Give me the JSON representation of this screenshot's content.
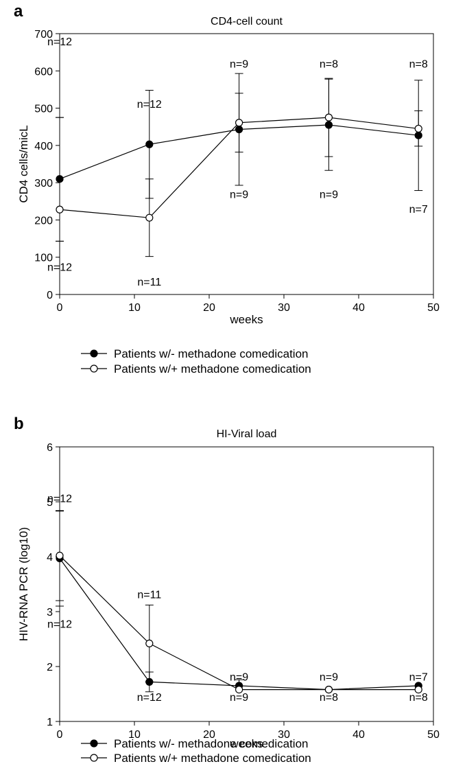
{
  "chart_data": [
    {
      "panel_letter": "a",
      "type": "line",
      "title": "CD4-cell count",
      "xlabel": "weeks",
      "ylabel": "CD4 cells/micL",
      "xlim": [
        0,
        50
      ],
      "ylim": [
        0,
        700
      ],
      "xticks": [
        0,
        10,
        20,
        30,
        40,
        50
      ],
      "yticks": [
        0,
        100,
        200,
        300,
        400,
        500,
        600,
        700
      ],
      "grid": false,
      "legend_position": "below",
      "x": [
        0,
        12,
        24,
        36,
        48
      ],
      "series": [
        {
          "name": "Patients w/- methadone comedication",
          "marker": "filled-circle",
          "values": [
            310,
            403,
            443,
            455,
            427
          ],
          "error_upper": [
            475,
            548,
            540,
            578,
            493
          ],
          "error_lower": [
            143,
            258,
            382,
            333,
            398
          ],
          "n_labels": [
            "n=12",
            "n=12",
            "n=9",
            "n=9",
            "n=7"
          ],
          "n_label_values": [
            680,
            512,
            270,
            270,
            230
          ]
        },
        {
          "name": "Patients w/+ methadone comedication",
          "marker": "open-circle",
          "values": [
            228,
            206,
            461,
            475,
            445
          ],
          "error_upper": [
            475,
            310,
            593,
            580,
            575
          ],
          "error_lower": [
            143,
            102,
            293,
            370,
            279
          ],
          "n_labels": [
            "n=12",
            "n=11",
            "n=9",
            "n=8",
            "n=8"
          ],
          "n_label_values": [
            75,
            35,
            620,
            620,
            620
          ]
        }
      ]
    },
    {
      "panel_letter": "b",
      "type": "line",
      "title": "HI-Viral load",
      "xlabel": "weeks",
      "ylabel": "HIV-RNA PCR (log10)",
      "xlim": [
        0,
        50
      ],
      "ylim": [
        1,
        6
      ],
      "xticks": [
        0,
        10,
        20,
        30,
        40,
        50
      ],
      "yticks": [
        1,
        2,
        3,
        4,
        5,
        6
      ],
      "grid": false,
      "legend_position": "below",
      "x": [
        0,
        12,
        24,
        36,
        48
      ],
      "series": [
        {
          "name": "Patients w/- methadone comedication",
          "marker": "filled-circle",
          "values": [
            3.97,
            1.72,
            1.65,
            1.58,
            1.65
          ],
          "error_upper": [
            4.84,
            1.9,
            1.76,
            null,
            null
          ],
          "error_lower": [
            3.1,
            1.54,
            null,
            null,
            null
          ],
          "n_labels": [
            "n=12",
            "n=12",
            "n=9",
            "n=9",
            "n=7"
          ],
          "n_label_values": [
            2.78,
            1.45,
            1.82,
            1.82,
            1.82
          ]
        },
        {
          "name": "Patients w/+ methadone comedication",
          "marker": "open-circle",
          "values": [
            4.02,
            2.42,
            1.58,
            1.58,
            1.58
          ],
          "error_upper": [
            4.83,
            3.12,
            null,
            null,
            null
          ],
          "error_lower": [
            3.2,
            1.72,
            null,
            null,
            null
          ],
          "n_labels": [
            "n=12",
            "n=11",
            "n=9",
            "n=8",
            "n=8"
          ],
          "n_label_values": [
            5.07,
            3.32,
            1.45,
            1.45,
            1.45
          ]
        }
      ]
    }
  ]
}
